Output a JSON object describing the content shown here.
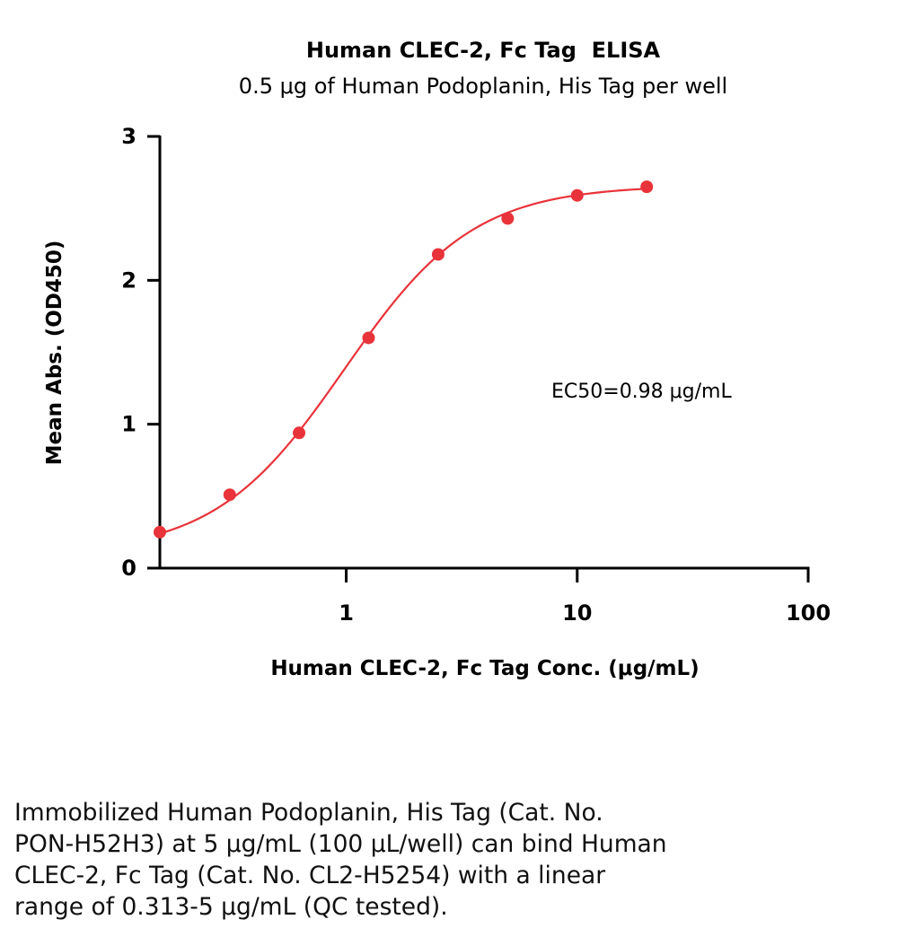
{
  "chart_data": {
    "type": "scatter",
    "title": "Human CLEC-2, Fc Tag  ELISA",
    "subtitle": "0.5 μg of Human Podoplanin, His Tag per well",
    "xlabel": "Human CLEC-2, Fc Tag Conc. (μg/mL)",
    "ylabel": "Mean Abs. (OD450)",
    "x_scale": "log",
    "xlim": [
      0.156,
      100
    ],
    "ylim": [
      0,
      3
    ],
    "x_ticks": [
      {
        "value": 1,
        "label": "1"
      },
      {
        "value": 10,
        "label": "10"
      },
      {
        "value": 100,
        "label": "100"
      }
    ],
    "y_ticks": [
      {
        "value": 0,
        "label": "0"
      },
      {
        "value": 1,
        "label": "1"
      },
      {
        "value": 2,
        "label": "2"
      },
      {
        "value": 3,
        "label": "3"
      }
    ],
    "grid": false,
    "series": [
      {
        "color": "#e8333a",
        "x": [
          0.156,
          0.313,
          0.625,
          1.25,
          2.5,
          5,
          10,
          20
        ],
        "y": [
          0.25,
          0.51,
          0.94,
          1.6,
          2.18,
          2.43,
          2.59,
          2.65
        ]
      }
    ],
    "fit_curve": {
      "type": "4PL",
      "bottom": 0.1,
      "top": 2.66,
      "ec50": 0.98,
      "hill": 1.55
    },
    "annotations": [
      "EC50=0.98 μg/mL"
    ]
  },
  "caption": {
    "lines": [
      "Immobilized Human Podoplanin, His Tag (Cat. No.",
      "PON-H52H3) at 5 μg/mL (100 μL/well) can bind Human",
      "CLEC-2, Fc Tag (Cat. No. CL2-H5254) with a linear",
      "range of 0.313-5 μg/mL (QC tested)."
    ]
  }
}
